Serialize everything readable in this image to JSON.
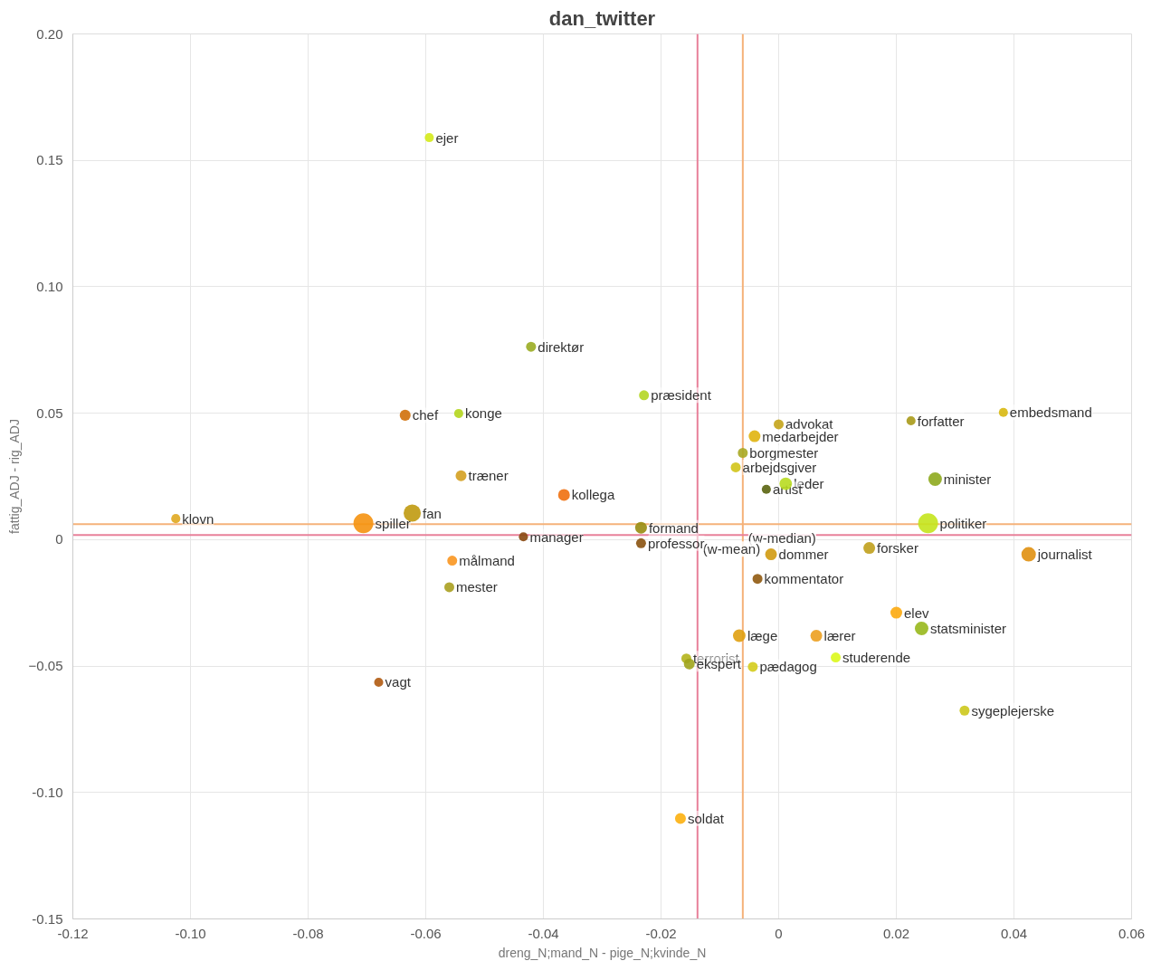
{
  "chart_data": {
    "type": "bubble",
    "title": "dan_twitter",
    "xlabel": "dreng_N;mand_N - pige_N;kvinde_N",
    "ylabel": "fattig_ADJ - rig_ADJ",
    "xlim": [
      -0.12,
      0.06
    ],
    "ylim": [
      -0.15,
      0.2
    ],
    "xticks": [
      {
        "value": -0.12,
        "label": "-0.12"
      },
      {
        "value": -0.1,
        "label": "-0.10"
      },
      {
        "value": -0.08,
        "label": "-0.08"
      },
      {
        "value": -0.06,
        "label": "-0.06"
      },
      {
        "value": -0.04,
        "label": "-0.04"
      },
      {
        "value": -0.02,
        "label": "-0.02"
      },
      0,
      0.02,
      0.04,
      0.06
    ],
    "yticks": [
      {
        "value": -0.15,
        "label": "-0.15"
      },
      {
        "value": -0.1,
        "label": "-0.10"
      },
      -0.05,
      0,
      0.05,
      {
        "value": 0.1,
        "label": "0.10"
      },
      0.15,
      {
        "value": 0.2,
        "label": "0.20"
      }
    ],
    "grid": true,
    "marker": "circle",
    "ref_lines": [
      {
        "axis": "x",
        "value": -0.0138,
        "color": "#e8809a"
      },
      {
        "axis": "x",
        "value": -0.0061,
        "color": "#f5b27a"
      },
      {
        "axis": "y",
        "value": 0.0018,
        "color": "#e8809a"
      },
      {
        "axis": "y",
        "value": 0.0061,
        "color": "#f5b27a"
      }
    ],
    "annotations": [
      {
        "text": "(w-median)",
        "x": -0.0061,
        "y": 0.0061
      },
      {
        "text": "(w-mean)",
        "x": -0.0138,
        "y": 0.0018
      }
    ],
    "series": [
      {
        "name": "ejer",
        "color": "#d4ea1a",
        "x": [
          -0.0594
        ],
        "values": [
          0.159
        ],
        "sizes": [
          0.21
        ]
      },
      {
        "name": "direktør",
        "color": "#9aac22",
        "x": [
          -0.0421
        ],
        "values": [
          0.0763
        ],
        "sizes": [
          0.25
        ]
      },
      {
        "name": "præsident",
        "color": "#b4d624",
        "x": [
          -0.0229
        ],
        "values": [
          0.0571
        ],
        "sizes": [
          0.25
        ]
      },
      {
        "name": "chef",
        "color": "#d0700a",
        "x": [
          -0.0635
        ],
        "values": [
          0.0492
        ],
        "sizes": [
          0.3
        ]
      },
      {
        "name": "konge",
        "color": "#b4d61e",
        "x": [
          -0.0544
        ],
        "values": [
          0.0499
        ],
        "sizes": [
          0.21
        ]
      },
      {
        "name": "embedsmand",
        "color": "#d8b810",
        "x": [
          0.0382
        ],
        "values": [
          0.0503
        ],
        "sizes": [
          0.21
        ]
      },
      {
        "name": "forfatter",
        "color": "#a89a18",
        "x": [
          0.0225
        ],
        "values": [
          0.047
        ],
        "sizes": [
          0.21
        ]
      },
      {
        "name": "advokat",
        "color": "#c4a41a",
        "x": [
          0.0
        ],
        "values": [
          0.0456
        ],
        "sizes": [
          0.25
        ]
      },
      {
        "name": "medarbejder",
        "color": "#e0b410",
        "x": [
          -0.0041
        ],
        "values": [
          0.0409
        ],
        "sizes": [
          0.35
        ]
      },
      {
        "name": "borgmester",
        "color": "#a8a824",
        "x": [
          -0.0061
        ],
        "values": [
          0.0343
        ],
        "sizes": [
          0.25
        ]
      },
      {
        "name": "arbejdsgiver",
        "color": "#d2c41a",
        "x": [
          -0.0073
        ],
        "values": [
          0.0286
        ],
        "sizes": [
          0.25
        ]
      },
      {
        "name": "træner",
        "color": "#d4a020",
        "x": [
          -0.054
        ],
        "values": [
          0.0253
        ],
        "sizes": [
          0.3
        ]
      },
      {
        "name": "minister",
        "color": "#8eaa1e",
        "x": [
          0.0266
        ],
        "values": [
          0.0239
        ],
        "sizes": [
          0.46
        ]
      },
      {
        "name": "leder",
        "color": "#b8dc20",
        "x": [
          0.0012
        ],
        "values": [
          0.0221
        ],
        "sizes": [
          0.4
        ]
      },
      {
        "name": "artist",
        "color": "#5a6410",
        "x": [
          -0.0021
        ],
        "values": [
          0.0199
        ],
        "sizes": [
          0.21
        ]
      },
      {
        "name": "kollega",
        "color": "#f07010",
        "x": [
          -0.0365
        ],
        "values": [
          0.0177
        ],
        "sizes": [
          0.35
        ]
      },
      {
        "name": "fan",
        "color": "#c09a10",
        "x": [
          -0.0623
        ],
        "values": [
          0.0105
        ],
        "sizes": [
          0.75
        ]
      },
      {
        "name": "klovn",
        "color": "#e0a820",
        "x": [
          -0.1025
        ],
        "values": [
          0.0083
        ],
        "sizes": [
          0.21
        ]
      },
      {
        "name": "spiller",
        "color": "#f59210",
        "x": [
          -0.0706
        ],
        "values": [
          0.0065
        ],
        "sizes": [
          1
        ]
      },
      {
        "name": "politiker",
        "color": "#c4e41c",
        "x": [
          0.0254
        ],
        "values": [
          0.0065
        ],
        "sizes": [
          1
        ]
      },
      {
        "name": "formand",
        "color": "#988c10",
        "x": [
          -0.0234
        ],
        "values": [
          0.0047
        ],
        "sizes": [
          0.35
        ]
      },
      {
        "name": "manager",
        "color": "#884810",
        "x": [
          -0.0434
        ],
        "values": [
          0.0011
        ],
        "sizes": [
          0.21
        ]
      },
      {
        "name": "professor",
        "color": "#8a5210",
        "x": [
          -0.0234
        ],
        "values": [
          -0.0014
        ],
        "sizes": [
          0.25
        ]
      },
      {
        "name": "dommer",
        "color": "#d09a10",
        "x": [
          -0.0013
        ],
        "values": [
          -0.0058
        ],
        "sizes": [
          0.35
        ]
      },
      {
        "name": "forsker",
        "color": "#c0a01c",
        "x": [
          0.0154
        ],
        "values": [
          -0.0033
        ],
        "sizes": [
          0.35
        ]
      },
      {
        "name": "journalist",
        "color": "#e09010",
        "x": [
          0.0425
        ],
        "values": [
          -0.0058
        ],
        "sizes": [
          0.53
        ]
      },
      {
        "name": "målmand",
        "color": "#fa9620",
        "x": [
          -0.0555
        ],
        "values": [
          -0.0083
        ],
        "sizes": [
          0.25
        ]
      },
      {
        "name": "kommentator",
        "color": "#905a10",
        "x": [
          -0.0036
        ],
        "values": [
          -0.0155
        ],
        "sizes": [
          0.25
        ]
      },
      {
        "name": "mester",
        "color": "#aaa020",
        "x": [
          -0.056
        ],
        "values": [
          -0.0188
        ],
        "sizes": [
          0.25
        ]
      },
      {
        "name": "elev",
        "color": "#fcaa10",
        "x": [
          0.02
        ],
        "values": [
          -0.0289
        ],
        "sizes": [
          0.35
        ]
      },
      {
        "name": "statsminister",
        "color": "#98b81c",
        "x": [
          0.0243
        ],
        "values": [
          -0.0351
        ],
        "sizes": [
          0.46
        ]
      },
      {
        "name": "læge",
        "color": "#e0a010",
        "x": [
          -0.0067
        ],
        "values": [
          -0.038
        ],
        "sizes": [
          0.4
        ]
      },
      {
        "name": "lærer",
        "color": "#eca020",
        "x": [
          0.0064
        ],
        "values": [
          -0.038
        ],
        "sizes": [
          0.35
        ]
      },
      {
        "name": "terrorist",
        "color": "#b4b41c",
        "x": [
          -0.0157
        ],
        "values": [
          -0.047
        ],
        "sizes": [
          0.25
        ]
      },
      {
        "name": "ekspert",
        "color": "#a0a41c",
        "x": [
          -0.0152
        ],
        "values": [
          -0.0492
        ],
        "sizes": [
          0.3
        ]
      },
      {
        "name": "pædagog",
        "color": "#d4cc1c",
        "x": [
          -0.0044
        ],
        "values": [
          -0.0503
        ],
        "sizes": [
          0.25
        ]
      },
      {
        "name": "studerende",
        "color": "#dcf81c",
        "x": [
          0.0097
        ],
        "values": [
          -0.0466
        ],
        "sizes": [
          0.25
        ]
      },
      {
        "name": "vagt",
        "color": "#b05a10",
        "x": [
          -0.068
        ],
        "values": [
          -0.0564
        ],
        "sizes": [
          0.21
        ]
      },
      {
        "name": "sygeplejerske",
        "color": "#ccc81c",
        "x": [
          0.0316
        ],
        "values": [
          -0.0676
        ],
        "sizes": [
          0.25
        ]
      },
      {
        "name": "soldat",
        "color": "#fcb010",
        "x": [
          -0.0167
        ],
        "values": [
          -0.1103
        ],
        "sizes": [
          0.3
        ]
      }
    ]
  }
}
